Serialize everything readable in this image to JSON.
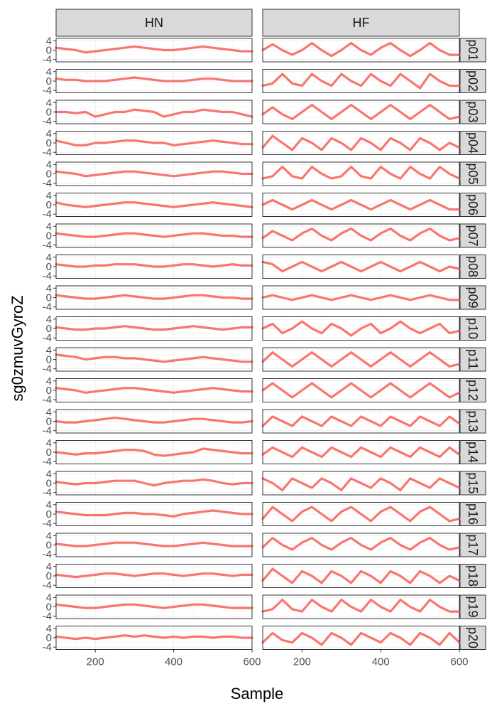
{
  "chart_data": {
    "type": "line",
    "xlabel": "Sample",
    "ylabel": "sg0zmuvGyroZ",
    "xlim": [
      100,
      600
    ],
    "ylim": [
      -5,
      5
    ],
    "x_ticks": [
      200,
      400,
      600
    ],
    "y_ticks": [
      -4,
      0,
      4
    ],
    "y_tick_labels": [
      "-4",
      "0",
      "4"
    ],
    "line_color": "#F8766D",
    "column_facets": [
      "HN",
      "HF"
    ],
    "row_facets": [
      "p01",
      "p02",
      "p03",
      "p04",
      "p05",
      "p06",
      "p07",
      "p08",
      "p09",
      "p10",
      "p11",
      "p12",
      "p13",
      "p14",
      "p15",
      "p16",
      "p17",
      "p18",
      "p19",
      "p20"
    ],
    "x": [
      100,
      125,
      150,
      175,
      200,
      225,
      250,
      275,
      300,
      325,
      350,
      375,
      400,
      425,
      450,
      475,
      500,
      525,
      550,
      575,
      600
    ],
    "panels": [
      {
        "row": "p01",
        "HN": [
          1,
          0.5,
          0,
          -1,
          -0.5,
          0,
          0.5,
          1,
          1.5,
          1,
          0.5,
          0,
          0,
          0.5,
          1,
          1.5,
          1,
          0.5,
          0,
          -0.5,
          -0.5
        ],
        "HF": [
          0,
          2.5,
          0,
          -2,
          0,
          3,
          0,
          -2.5,
          0,
          3,
          0,
          -2,
          1,
          3,
          0,
          -2.5,
          0,
          3,
          0,
          -2,
          -2
        ]
      },
      {
        "row": "p02",
        "HN": [
          1,
          0.5,
          0.5,
          0,
          0,
          0,
          0.5,
          1,
          1.5,
          1,
          0.5,
          0,
          0,
          0,
          0.5,
          1,
          1,
          0.5,
          0,
          0,
          0
        ],
        "HF": [
          -2,
          -1,
          3,
          -1,
          -2,
          3,
          0,
          -2,
          3,
          0,
          -2,
          3,
          0,
          -2,
          3,
          0,
          -3,
          3,
          0,
          -2,
          -2
        ]
      },
      {
        "row": "p03",
        "HN": [
          0,
          0,
          -0.5,
          0,
          -2,
          -1,
          0,
          0,
          1,
          0.5,
          0,
          -2,
          -1,
          0,
          0,
          1,
          0.5,
          0,
          0,
          -1,
          -2
        ],
        "HF": [
          -1,
          2,
          -1,
          -3,
          0,
          3,
          0,
          -3,
          0,
          3,
          0,
          -3,
          0,
          3,
          0,
          -3,
          0,
          3,
          0,
          -3,
          -2
        ]
      },
      {
        "row": "p04",
        "HN": [
          1,
          0,
          -1,
          -1,
          0,
          0,
          0.5,
          1,
          1,
          0.5,
          0,
          0,
          -1,
          -0.5,
          0,
          0.5,
          1,
          0.5,
          0,
          -0.5,
          -0.5
        ],
        "HF": [
          -2,
          3,
          0,
          -3,
          2,
          0,
          -3,
          2,
          0,
          -3,
          2,
          0,
          -3,
          2,
          0,
          -3,
          2,
          0,
          -3,
          0,
          -2
        ]
      },
      {
        "row": "p05",
        "HN": [
          1,
          0.5,
          0,
          -1,
          -0.5,
          0,
          0.5,
          1,
          1,
          0.5,
          0,
          -0.5,
          -1,
          -0.5,
          0,
          0.5,
          1,
          1,
          0.5,
          0,
          0
        ],
        "HF": [
          -2,
          -1,
          3,
          -1,
          -2,
          3,
          0,
          -2,
          -1,
          3,
          -1,
          -2,
          3,
          0,
          -2,
          3,
          0,
          -2,
          3,
          0,
          -2
        ]
      },
      {
        "row": "p06",
        "HN": [
          1,
          0,
          -0.5,
          -1,
          -0.5,
          0,
          0.5,
          1,
          1,
          0.5,
          0,
          -0.5,
          -1,
          -0.5,
          0,
          0.5,
          1,
          0.5,
          0,
          -0.5,
          -1
        ],
        "HF": [
          0,
          2,
          0,
          -2,
          0,
          2,
          0,
          -2,
          0,
          2,
          0,
          -2,
          0,
          2,
          0,
          -2,
          0,
          2,
          0,
          -2,
          -2
        ]
      },
      {
        "row": "p07",
        "HN": [
          1,
          0.5,
          0,
          -0.5,
          -0.5,
          0,
          0.5,
          1,
          1,
          0.5,
          0,
          -0.5,
          0,
          0.5,
          1,
          1,
          0.5,
          0,
          0,
          -0.5,
          -0.5
        ],
        "HF": [
          -1,
          2,
          0,
          -2,
          1,
          3,
          0,
          -2,
          1,
          3,
          0,
          -2,
          1,
          3,
          0,
          -2,
          1,
          3,
          0,
          -2,
          -1
        ]
      },
      {
        "row": "p08",
        "HN": [
          1,
          0.5,
          0,
          0,
          0.5,
          0.5,
          1,
          1,
          1,
          0.5,
          0,
          0,
          0.5,
          1,
          1,
          0.5,
          0,
          0.5,
          1,
          0.5,
          0.5
        ],
        "HF": [
          2,
          1,
          -2,
          0,
          2,
          0,
          -2,
          0,
          2,
          0,
          -2,
          0,
          2,
          0,
          -2,
          0,
          2,
          0,
          -2,
          0,
          -1
        ]
      },
      {
        "row": "p09",
        "HN": [
          1,
          0.5,
          0,
          -0.5,
          -0.5,
          0,
          0.5,
          1,
          0.5,
          0,
          -0.5,
          -0.5,
          0,
          0.5,
          1,
          1,
          0.5,
          0,
          0,
          -0.5,
          -0.5
        ],
        "HF": [
          0,
          1,
          0,
          -1,
          0,
          1,
          0,
          -1,
          0,
          1,
          0,
          -1,
          0,
          1,
          0,
          -1,
          0,
          1,
          0,
          -1,
          -1
        ]
      },
      {
        "row": "p10",
        "HN": [
          0.5,
          0,
          -0.5,
          -0.5,
          0,
          0,
          0.5,
          1,
          0.5,
          0,
          -0.5,
          -0.5,
          0,
          0.5,
          1,
          0.5,
          0,
          -0.5,
          0,
          0.5,
          0.5
        ],
        "HF": [
          0,
          2,
          -2,
          0,
          3,
          0,
          -2,
          2,
          0,
          -3,
          0,
          2,
          -2,
          0,
          3,
          0,
          -2,
          0,
          2,
          -2,
          -1
        ]
      },
      {
        "row": "p11",
        "HN": [
          2,
          1.5,
          1,
          0,
          0.5,
          1,
          1,
          0.5,
          0.5,
          0,
          -0.5,
          -1,
          -0.5,
          0,
          0.5,
          1,
          0.5,
          0,
          -0.5,
          -1,
          -1
        ],
        "HF": [
          -1,
          3,
          0,
          -3,
          0,
          3,
          0,
          -3,
          0,
          3,
          0,
          -3,
          0,
          3,
          0,
          -3,
          0,
          3,
          0,
          -3,
          -2
        ]
      },
      {
        "row": "p12",
        "HN": [
          1,
          0.5,
          0,
          -1,
          -0.5,
          0,
          0.5,
          1,
          1,
          0.5,
          0,
          -0.5,
          -1,
          -0.5,
          0,
          0.5,
          1,
          0.5,
          0,
          -0.5,
          -0.5
        ],
        "HF": [
          0,
          3,
          0,
          -3,
          0,
          3,
          0,
          -3,
          0,
          3,
          0,
          -3,
          0,
          3,
          0,
          -3,
          0,
          3,
          0,
          -3,
          -1
        ]
      },
      {
        "row": "p13",
        "HN": [
          0,
          -0.5,
          -0.5,
          0,
          0.5,
          1,
          1.5,
          1,
          0.5,
          0,
          -0.5,
          -0.5,
          0,
          0.5,
          1,
          1,
          0.5,
          0,
          -0.5,
          -0.5,
          0
        ],
        "HF": [
          -2,
          2,
          0,
          -2,
          2,
          0,
          -2,
          2,
          0,
          -2,
          2,
          0,
          -2,
          2,
          0,
          -2,
          2,
          0,
          -2,
          2,
          -1
        ]
      },
      {
        "row": "p14",
        "HN": [
          0,
          -0.5,
          -1,
          -0.5,
          -0.5,
          0,
          0.5,
          1,
          1,
          0.5,
          -1,
          -1.5,
          -1,
          -0.5,
          0,
          1.5,
          1,
          0.5,
          0,
          -0.5,
          -0.5
        ],
        "HF": [
          -1,
          2,
          0,
          -2,
          2,
          0,
          -2,
          2,
          0,
          -2,
          2,
          0,
          -2,
          2,
          0,
          -2,
          2,
          0,
          -2,
          2,
          -1
        ]
      },
      {
        "row": "p15",
        "HN": [
          0.5,
          0,
          -0.5,
          0,
          0,
          0.5,
          1,
          1,
          1,
          0,
          -1,
          0,
          0.5,
          1,
          1,
          1.5,
          1,
          0,
          -0.5,
          0,
          0
        ],
        "HF": [
          2,
          0,
          -3,
          2,
          0,
          -2,
          2,
          0,
          -3,
          2,
          0,
          -2,
          2,
          0,
          -3,
          2,
          0,
          -2,
          2,
          0,
          -2
        ]
      },
      {
        "row": "p16",
        "HN": [
          1,
          0.5,
          0,
          -0.5,
          -0.5,
          -0.5,
          0,
          0.5,
          0.5,
          0,
          0,
          -0.5,
          -1,
          0,
          0.5,
          1,
          1.5,
          1,
          0.5,
          0,
          0
        ],
        "HF": [
          -2,
          3,
          0,
          -3,
          1,
          3,
          0,
          -3,
          1,
          3,
          0,
          -3,
          1,
          3,
          0,
          -3,
          1,
          3,
          0,
          -3,
          -2
        ]
      },
      {
        "row": "p17",
        "HN": [
          0.5,
          0,
          -0.5,
          -0.5,
          0,
          0.5,
          1,
          1,
          1,
          0.5,
          0,
          -0.5,
          -0.5,
          0,
          0.5,
          1,
          0.5,
          0,
          -0.5,
          -0.5,
          -0.5
        ],
        "HF": [
          -1,
          3,
          0,
          -2,
          1,
          3,
          0,
          -2,
          1,
          3,
          0,
          -2,
          1,
          3,
          0,
          -2,
          1,
          3,
          0,
          -2,
          -1
        ]
      },
      {
        "row": "p18",
        "HN": [
          0.5,
          0,
          -0.5,
          0,
          0.5,
          1,
          1,
          0.5,
          0,
          0.5,
          1,
          1,
          0.5,
          0,
          0.5,
          1,
          1,
          0.5,
          0,
          0.5,
          0.5
        ],
        "HF": [
          -2,
          3,
          0,
          -3,
          2,
          0,
          -3,
          2,
          0,
          -3,
          2,
          0,
          -3,
          2,
          0,
          -3,
          2,
          0,
          -3,
          0,
          -2
        ]
      },
      {
        "row": "p19",
        "HN": [
          1,
          0.5,
          0,
          -0.5,
          -0.5,
          0,
          0.5,
          1,
          1,
          0.5,
          0,
          -0.5,
          0,
          0.5,
          1,
          1,
          0.5,
          0,
          -0.5,
          -0.5,
          -0.5
        ],
        "HF": [
          -2,
          -1,
          3,
          -1,
          -2,
          3,
          0,
          -2,
          3,
          0,
          -2,
          3,
          0,
          -2,
          3,
          0,
          -2,
          3,
          0,
          -2,
          -2
        ]
      },
      {
        "row": "p20",
        "HN": [
          0.5,
          0,
          -0.5,
          0,
          -0.5,
          0,
          0.5,
          1,
          0.5,
          1,
          0.5,
          0,
          0.5,
          0,
          0.5,
          0.5,
          0,
          0.5,
          0.5,
          0,
          0
        ],
        "HF": [
          -2,
          2,
          -1,
          -2,
          2,
          0,
          -3,
          2,
          0,
          -3,
          2,
          0,
          -2,
          2,
          0,
          -3,
          2,
          0,
          -3,
          2,
          -2
        ]
      }
    ]
  }
}
